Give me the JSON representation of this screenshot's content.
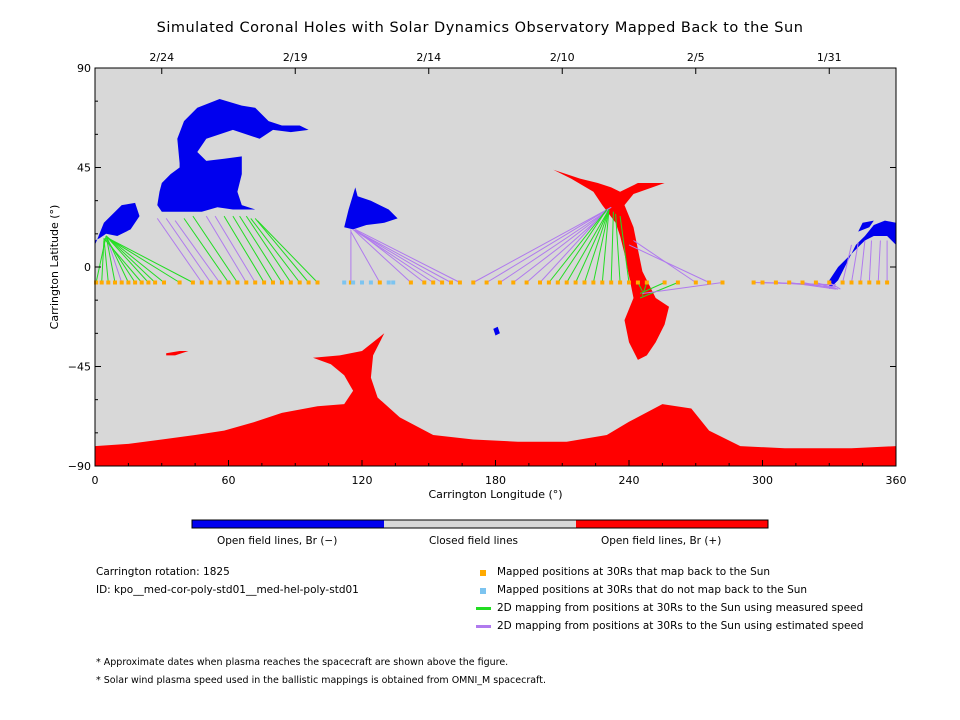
{
  "title": "Simulated Coronal Holes with Solar Dynamics Observatory Mapped Back to the Sun",
  "chart_data": {
    "type": "map",
    "xlabel": "Carrington Longitude (°)",
    "ylabel": "Carrington Latitude (°)",
    "xlim": [
      0,
      360
    ],
    "ylim": [
      -90,
      90
    ],
    "x_ticks": [
      "0",
      "60",
      "120",
      "180",
      "240",
      "300",
      "360"
    ],
    "y_ticks": [
      "90",
      "45",
      "0",
      "−45",
      "−90"
    ],
    "top_date_ticks": [
      {
        "longitude": 30,
        "label": "2/24"
      },
      {
        "longitude": 90,
        "label": "2/19"
      },
      {
        "longitude": 150,
        "label": "2/14"
      },
      {
        "longitude": 210,
        "label": "2/10"
      },
      {
        "longitude": 270,
        "label": "2/5"
      },
      {
        "longitude": 330,
        "label": "1/31"
      }
    ],
    "colors": {
      "open_negative": "#0000ee",
      "closed": "#d8d8d8",
      "open_positive": "#ff0000",
      "mapped_back": "#ffaa00",
      "not_mapped": "#7cc4f0",
      "measured_speed": "#22dd22",
      "estimated_speed": "#b07aee"
    },
    "colorbar_labels": [
      "Open field lines, Br (−)",
      "Closed field lines",
      "Open field lines, Br (+)"
    ],
    "mapped_points_latitude": -7,
    "mappings": [
      {
        "x30": 0.5,
        "xs": 5,
        "ys": 14,
        "type": "measured"
      },
      {
        "x30": 3,
        "xs": 4,
        "ys": 12,
        "type": "measured"
      },
      {
        "x30": 6,
        "xs": 4,
        "ys": 13,
        "type": "measured"
      },
      {
        "x30": 9,
        "xs": 5,
        "ys": 14,
        "type": "measured"
      },
      {
        "x30": 12,
        "xs": 5,
        "ys": 14,
        "type": "estimated"
      },
      {
        "x30": 15,
        "xs": 5,
        "ys": 14,
        "type": "measured"
      },
      {
        "x30": 18,
        "xs": 5,
        "ys": 13,
        "type": "measured"
      },
      {
        "x30": 21,
        "xs": 4,
        "ys": 13,
        "type": "measured"
      },
      {
        "x30": 24,
        "xs": 5,
        "ys": 14,
        "type": "measured"
      },
      {
        "x30": 27,
        "xs": 5,
        "ys": 14,
        "type": "measured"
      },
      {
        "x30": 31,
        "xs": 5,
        "ys": 14,
        "type": "measured"
      },
      {
        "x30": 38,
        "xs": 6,
        "ys": 13,
        "type": "measured"
      },
      {
        "x30": 44,
        "xs": 6,
        "ys": 13,
        "type": "measured"
      },
      {
        "x30": 48,
        "xs": 28,
        "ys": 22,
        "type": "estimated"
      },
      {
        "x30": 52,
        "xs": 32,
        "ys": 22,
        "type": "estimated"
      },
      {
        "x30": 56,
        "xs": 36,
        "ys": 21,
        "type": "estimated"
      },
      {
        "x30": 60,
        "xs": 40,
        "ys": 22,
        "type": "measured"
      },
      {
        "x30": 64,
        "xs": 44,
        "ys": 23,
        "type": "measured"
      },
      {
        "x30": 68,
        "xs": 50,
        "ys": 23,
        "type": "estimated"
      },
      {
        "x30": 72,
        "xs": 54,
        "ys": 23,
        "type": "estimated"
      },
      {
        "x30": 76,
        "xs": 58,
        "ys": 23,
        "type": "measured"
      },
      {
        "x30": 80,
        "xs": 62,
        "ys": 23,
        "type": "measured"
      },
      {
        "x30": 84,
        "xs": 65,
        "ys": 23,
        "type": "measured"
      },
      {
        "x30": 88,
        "xs": 68,
        "ys": 23,
        "type": "measured"
      },
      {
        "x30": 92,
        "xs": 70,
        "ys": 22,
        "type": "measured"
      },
      {
        "x30": 96,
        "xs": 72,
        "ys": 22,
        "type": "measured"
      },
      {
        "x30": 100,
        "xs": 73,
        "ys": 21,
        "type": "measured"
      },
      {
        "x30": 115,
        "xs": 115,
        "ys": 17,
        "type": "estimated"
      },
      {
        "x30": 128,
        "xs": 115,
        "ys": 16,
        "type": "estimated"
      },
      {
        "x30": 142,
        "xs": 116,
        "ys": 17,
        "type": "estimated"
      },
      {
        "x30": 148,
        "xs": 117,
        "ys": 17,
        "type": "estimated"
      },
      {
        "x30": 152,
        "xs": 116,
        "ys": 17,
        "type": "estimated"
      },
      {
        "x30": 156,
        "xs": 116,
        "ys": 17,
        "type": "estimated"
      },
      {
        "x30": 160,
        "xs": 116,
        "ys": 17,
        "type": "estimated"
      },
      {
        "x30": 164,
        "xs": 117,
        "ys": 17,
        "type": "estimated"
      },
      {
        "x30": 170,
        "xs": 232,
        "ys": 27,
        "type": "estimated"
      },
      {
        "x30": 176,
        "xs": 232,
        "ys": 27,
        "type": "estimated"
      },
      {
        "x30": 182,
        "xs": 231,
        "ys": 26,
        "type": "estimated"
      },
      {
        "x30": 188,
        "xs": 231,
        "ys": 26,
        "type": "estimated"
      },
      {
        "x30": 194,
        "xs": 231,
        "ys": 26,
        "type": "estimated"
      },
      {
        "x30": 200,
        "xs": 230,
        "ys": 26,
        "type": "estimated"
      },
      {
        "x30": 204,
        "xs": 230,
        "ys": 26,
        "type": "measured"
      },
      {
        "x30": 208,
        "xs": 230,
        "ys": 26,
        "type": "measured"
      },
      {
        "x30": 212,
        "xs": 231,
        "ys": 26,
        "type": "measured"
      },
      {
        "x30": 216,
        "xs": 231,
        "ys": 26,
        "type": "measured"
      },
      {
        "x30": 220,
        "xs": 231,
        "ys": 26,
        "type": "measured"
      },
      {
        "x30": 224,
        "xs": 231,
        "ys": 26,
        "type": "measured"
      },
      {
        "x30": 228,
        "xs": 231,
        "ys": 26,
        "type": "measured"
      },
      {
        "x30": 232,
        "xs": 233,
        "ys": 25,
        "type": "measured"
      },
      {
        "x30": 236,
        "xs": 234,
        "ys": 24,
        "type": "measured"
      },
      {
        "x30": 240,
        "xs": 236,
        "ys": 23,
        "type": "measured"
      },
      {
        "x30": 244,
        "xs": 246,
        "ys": -11,
        "type": "measured"
      },
      {
        "x30": 248,
        "xs": 246,
        "ys": -13,
        "type": "measured"
      },
      {
        "x30": 256,
        "xs": 245,
        "ys": -12,
        "type": "measured"
      },
      {
        "x30": 262,
        "xs": 245,
        "ys": -14,
        "type": "measured"
      },
      {
        "x30": 270,
        "xs": 242,
        "ys": 12,
        "type": "estimated"
      },
      {
        "x30": 276,
        "xs": 240,
        "ys": 10,
        "type": "estimated"
      },
      {
        "x30": 282,
        "xs": 246,
        "ys": -12,
        "type": "estimated"
      },
      {
        "x30": 296,
        "xs": 332,
        "ys": -8,
        "type": "estimated"
      },
      {
        "x30": 300,
        "xs": 333,
        "ys": -8,
        "type": "estimated"
      },
      {
        "x30": 306,
        "xs": 333,
        "ys": -9,
        "type": "estimated"
      },
      {
        "x30": 312,
        "xs": 333,
        "ys": -10,
        "type": "estimated"
      },
      {
        "x30": 318,
        "xs": 334,
        "ys": -10,
        "type": "estimated"
      },
      {
        "x30": 324,
        "xs": 334,
        "ys": -10,
        "type": "estimated"
      },
      {
        "x30": 330,
        "xs": 335,
        "ys": -10,
        "type": "estimated"
      },
      {
        "x30": 336,
        "xs": 340,
        "ys": 10,
        "type": "estimated"
      },
      {
        "x30": 340,
        "xs": 343,
        "ys": 11,
        "type": "estimated"
      },
      {
        "x30": 344,
        "xs": 346,
        "ys": 12,
        "type": "estimated"
      },
      {
        "x30": 348,
        "xs": 349,
        "ys": 12,
        "type": "estimated"
      },
      {
        "x30": 352,
        "xs": 353,
        "ys": 12,
        "type": "estimated"
      },
      {
        "x30": 356,
        "xs": 356,
        "ys": 12,
        "type": "estimated"
      }
    ],
    "unmapped_points": [
      112,
      116,
      120,
      124,
      132,
      134
    ]
  },
  "colorbar": {
    "neg_label": "Open field lines, Br (−)",
    "closed_label": "Closed field lines",
    "pos_label": "Open field lines, Br (+)"
  },
  "info": {
    "rotation": "Carrington rotation: 1825",
    "id": "ID: kpo__med-cor-poly-std01__med-hel-poly-std01"
  },
  "legend": {
    "mapped": "Mapped positions at 30Rs that map back to the Sun",
    "unmapped": "Mapped positions at 30Rs that do not map back to the Sun",
    "measured": "2D mapping from positions at 30Rs to the Sun using measured speed",
    "estimated": "2D mapping from positions at 30Rs to the Sun using estimated speed"
  },
  "notes": {
    "note1": "* Approximate dates when plasma reaches the spacecraft are shown above the figure.",
    "note2": "* Solar wind plasma speed used in the ballistic mappings is obtained from OMNI_M spacecraft."
  }
}
